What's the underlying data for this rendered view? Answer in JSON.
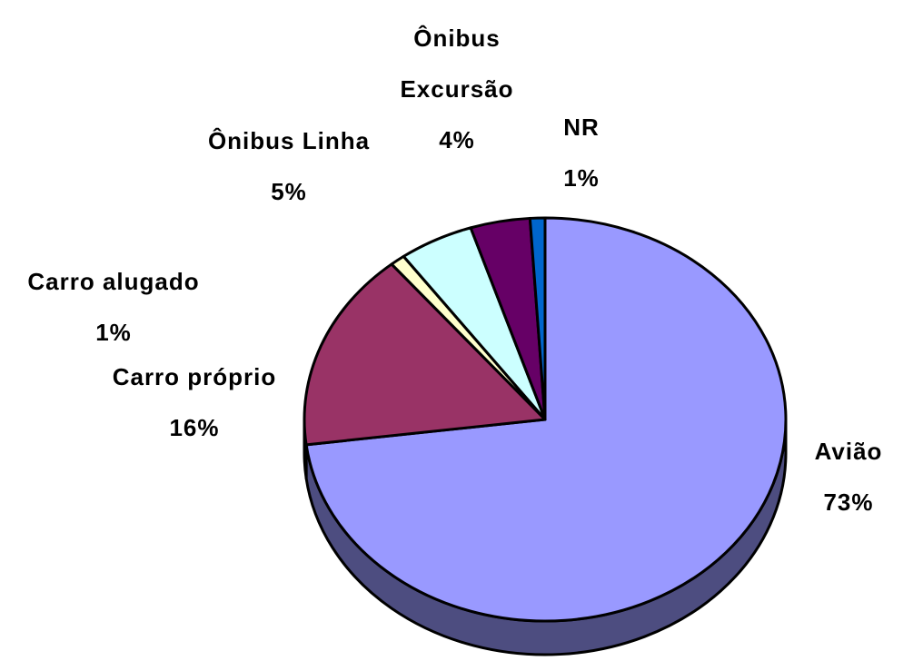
{
  "chart_data": {
    "type": "pie3d",
    "categories": [
      "Avião",
      "Carro próprio",
      "Carro alugado",
      "Ônibus Linha",
      "Ônibus Excursão",
      "NR"
    ],
    "values": [
      73,
      16,
      1,
      5,
      4,
      1
    ],
    "value_labels": [
      "73%",
      "16%",
      "1%",
      "5%",
      "4%",
      "1%"
    ],
    "colors": [
      "#9999ff",
      "#993366",
      "#ffffcc",
      "#ccffff",
      "#660066",
      "#0066cc"
    ]
  }
}
